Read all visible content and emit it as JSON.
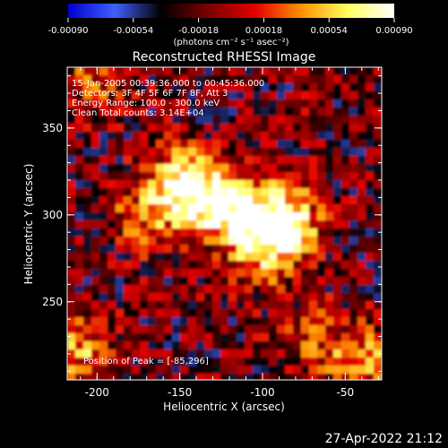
{
  "colorbar": {
    "ticks": [
      "-0.00090",
      "-0.00054",
      "-0.00018",
      "0.00018",
      "0.00054",
      "0.00090"
    ],
    "unit_label": "(photons cm⁻² s⁻¹ asec⁻²)",
    "range": [
      -0.0009,
      0.0009
    ],
    "colormap": [
      "#0000c8",
      "#4060ff",
      "#000000",
      "#7a0000",
      "#e00000",
      "#ff9000",
      "#ffff60",
      "#ffffff"
    ]
  },
  "chart_data": {
    "type": "heatmap",
    "title": "Reconstructed RHESSI Image",
    "xlabel": "Heliocentric X (arcsec)",
    "ylabel": "Heliocentric Y (arcsec)",
    "xlim": [
      -218,
      -28
    ],
    "ylim": [
      205,
      385
    ],
    "xticks": [
      -200,
      -150,
      -100,
      -50
    ],
    "yticks": [
      250,
      300,
      350
    ],
    "annotations": [
      "15-Jan-2005 00:39:36.000 to 00:45:36.000",
      "Detectors: 3F 4F 5F 6F 7F 8F, Att 3",
      "Energy Range: 100.0 - 300.0 keV",
      "Clean     Total counts: 3.14E+04"
    ],
    "peak_label": "Position of Peak = [-85,296]",
    "peak": [
      -85,
      296
    ],
    "sources": [
      {
        "x": -148,
        "y": 318,
        "value": 0.0009
      },
      {
        "x": -130,
        "y": 307,
        "value": 0.0007
      },
      {
        "x": -110,
        "y": 300,
        "value": 0.0008
      },
      {
        "x": -85,
        "y": 296,
        "value": 0.0009
      },
      {
        "x": -100,
        "y": 280,
        "value": 0.0006
      },
      {
        "x": -170,
        "y": 300,
        "value": 0.0005
      },
      {
        "x": -210,
        "y": 222,
        "value": 0.0006
      },
      {
        "x": -40,
        "y": 215,
        "value": 0.0006
      },
      {
        "x": -70,
        "y": 230,
        "value": 0.0003
      },
      {
        "x": -200,
        "y": 380,
        "value": 0.0004
      }
    ]
  },
  "footer": {
    "timestamp": "27-Apr-2022 21:12"
  }
}
